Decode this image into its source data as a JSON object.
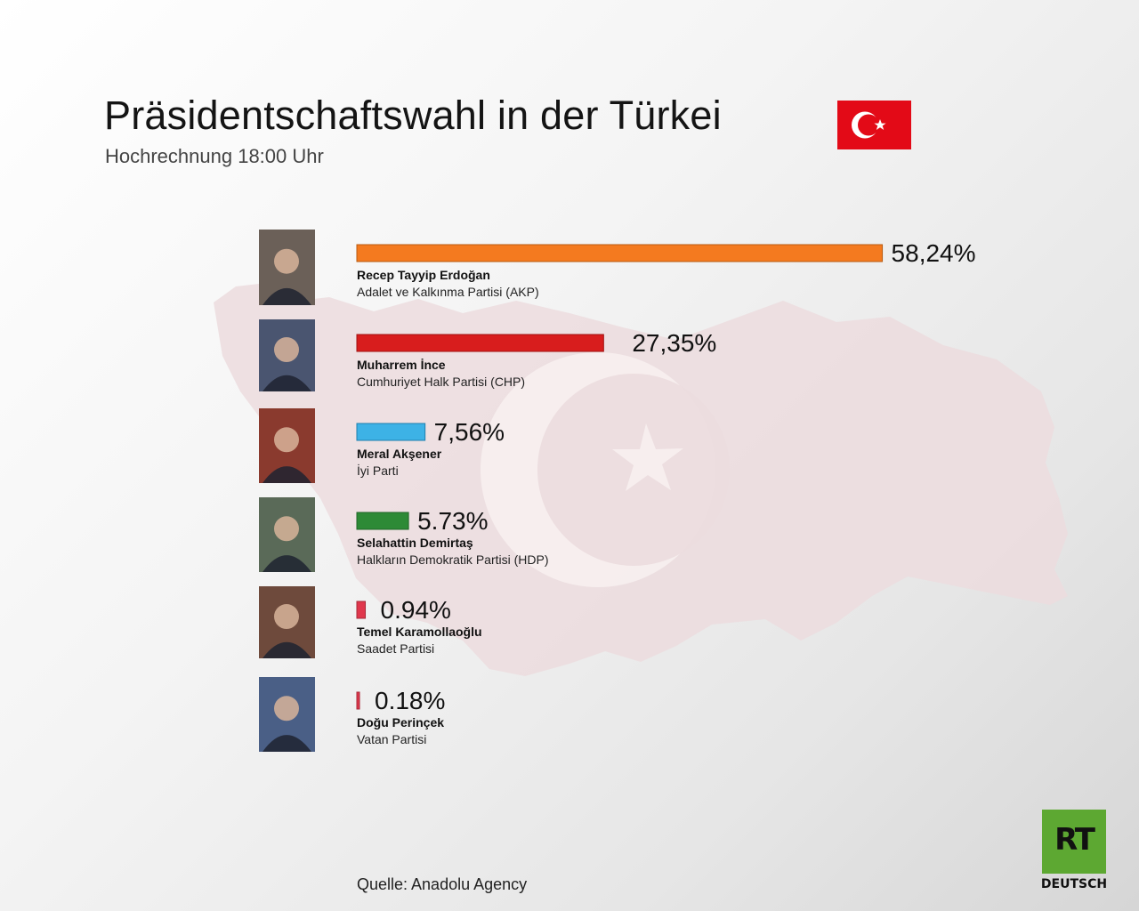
{
  "header": {
    "title": "Präsidentschaftswahl in der Türkei",
    "subtitle": "Hochrechnung 18:00 Uhr"
  },
  "colors": {
    "flag_red": "#e30a17",
    "map_tint": "#ecdcde",
    "rt_green": "#5da832"
  },
  "chart_data": {
    "type": "bar",
    "orientation": "horizontal",
    "categories": [
      "Recep Tayyip Erdoğan",
      "Muharrem İnce",
      "Meral Akşener",
      "Selahattin Demirtaş",
      "Temel Karamollaoğlu",
      "Doğu Perinçek"
    ],
    "parties": [
      "Adalet ve Kalkınma Partisi (AKP)",
      "Cumhuriyet Halk Partisi (CHP)",
      "İyi Parti",
      "Halkların Demokratik Partisi (HDP)",
      "Saadet Partisi",
      "Vatan Partisi"
    ],
    "values": [
      58.24,
      27.35,
      7.56,
      5.73,
      0.94,
      0.18
    ],
    "value_labels": [
      "58,24%",
      "27,35%",
      "7,56%",
      "5.73%",
      "0.94%",
      "0.18%"
    ],
    "bar_colors": [
      "#f47a1f",
      "#d81d1d",
      "#3db2e6",
      "#2d8a36",
      "#e0374c",
      "#e0374c"
    ],
    "bar_stroke": [
      "#b85a10",
      "#a01010",
      "#1e7fad",
      "#1f6526",
      "#a82838",
      "#a82838"
    ],
    "xlim": [
      0,
      60
    ]
  },
  "footer": {
    "source": "Quelle: Anadolu Agency",
    "logo_text": "RT",
    "logo_sub": "DEUTSCH"
  }
}
